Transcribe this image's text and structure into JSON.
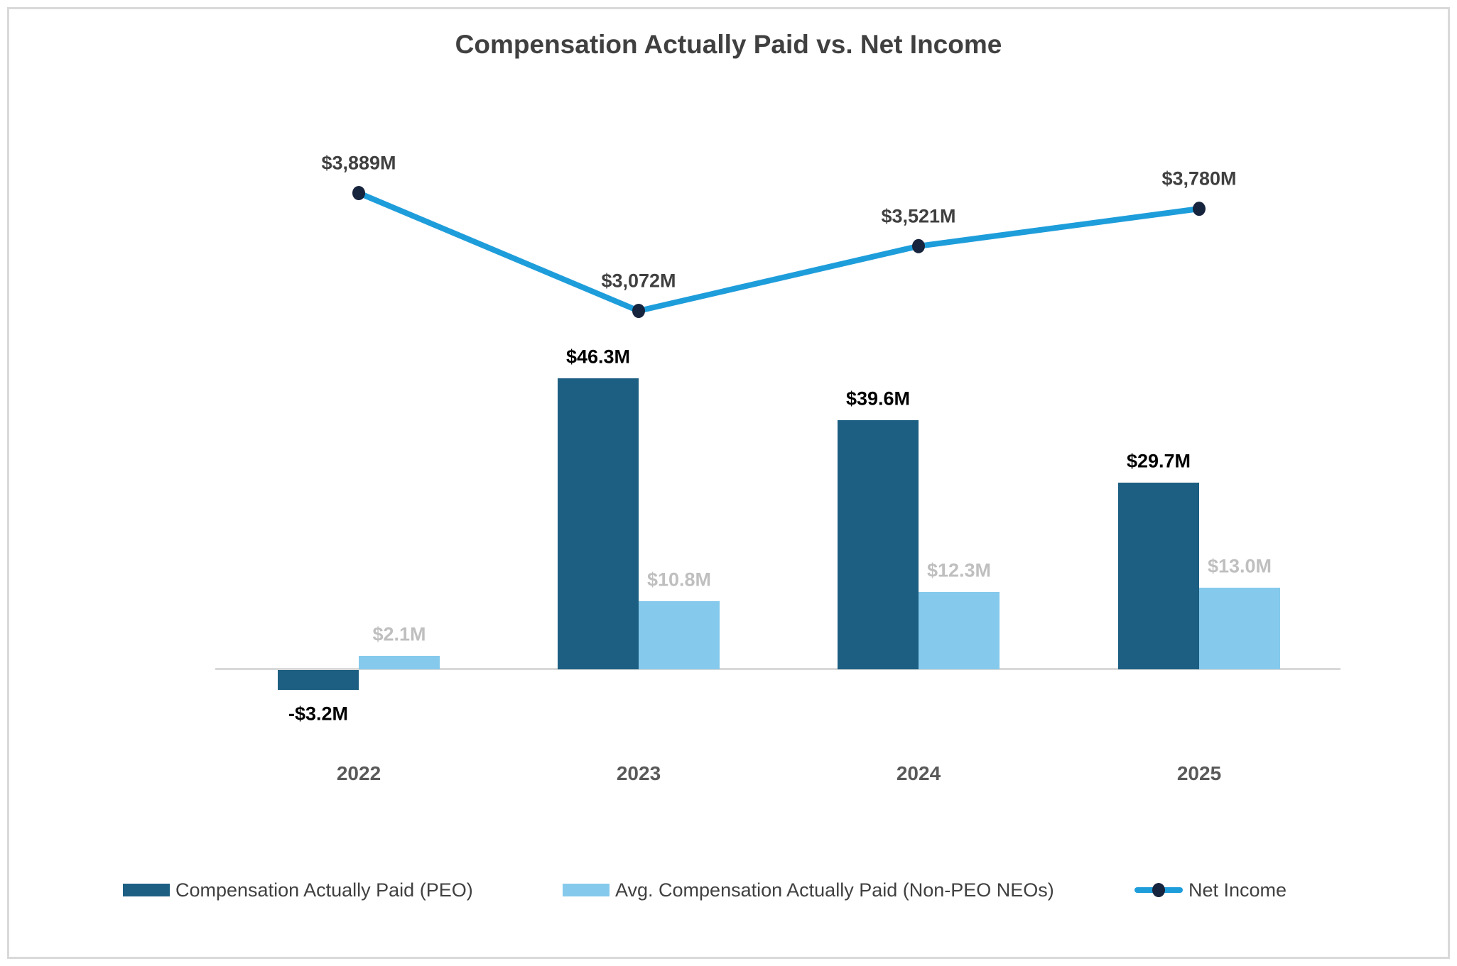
{
  "chart_data": {
    "type": "bar",
    "subtype": "clustered-column-with-line-overlay",
    "title": "Compensation Actually Paid vs. Net Income",
    "categories": [
      "2022",
      "2023",
      "2024",
      "2025"
    ],
    "series": [
      {
        "name": "Compensation Actually Paid (PEO)",
        "type": "bar",
        "color": "#1d5f82",
        "values": [
          -3.2,
          46.3,
          39.6,
          29.7
        ],
        "labels": [
          "-$3.2M",
          "$46.3M",
          "$39.6M",
          "$29.7M"
        ],
        "label_color": "#000000",
        "unit": "$M"
      },
      {
        "name": "Avg. Compensation Actually Paid (Non-PEO NEOs)",
        "type": "bar",
        "color": "#85caec",
        "values": [
          2.1,
          10.8,
          12.3,
          13.0
        ],
        "labels": [
          "$2.1M",
          "$10.8M",
          "$12.3M",
          "$13.0M"
        ],
        "label_color": "#bfbfbf",
        "unit": "$M"
      },
      {
        "name": "Net Income",
        "type": "line",
        "color": "#1e9ddb",
        "marker_color": "#17243e",
        "values": [
          3889,
          3072,
          3521,
          3780
        ],
        "labels": [
          "$3,889M",
          "$3,072M",
          "$3,521M",
          "$3,780M"
        ],
        "label_color": "#404040",
        "unit": "$M"
      }
    ],
    "legend_position": "bottom",
    "grid": false,
    "axis_line_color": "#d9d9d9",
    "title_color": "#404040",
    "x_label_color": "#595959"
  }
}
